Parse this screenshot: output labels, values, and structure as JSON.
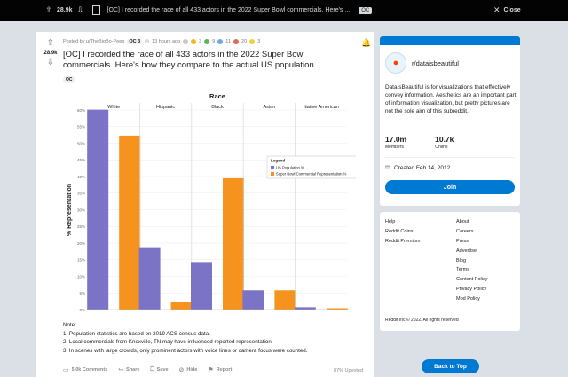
{
  "topbar": {
    "score": "28.9k",
    "title": "[OC] I recorded the race of all 433 actors in the 2022 Super Bowl commercials. Here's ...",
    "tag": "OC",
    "close_label": "Close"
  },
  "post": {
    "score": "28.9k",
    "author": "Posted by u/TheBigBo-Peep",
    "author_tag": "OC 3",
    "time": "13 hours ago",
    "award_counts": [
      "3",
      "9",
      "11",
      "20",
      "3"
    ],
    "title": "[OC] I recorded the race of all 433 actors in the 2022 Super Bowl commercials. Here's how they compare to the actual US population.",
    "flair": "OC",
    "notes_title": "Note:",
    "notes": [
      "1. Population statistics are based on 2019 ACS census data.",
      "2. Local commercials from Knoxville, TN may have influenced reported representation.",
      "3. In scenes with large crowds, only prominent actors with voice lines or camera focus were counted."
    ],
    "actions": {
      "comments": "5.0k Comments",
      "share": "Share",
      "save": "Save",
      "hide": "Hide",
      "report": "Report"
    },
    "upvoted": "87% Upvoted"
  },
  "chart_data": {
    "type": "bar",
    "title": "Race",
    "ylabel": "% Representation",
    "xlabel": "",
    "ylim": [
      0,
      60
    ],
    "yticks": [
      "0%",
      "5%",
      "10%",
      "15%",
      "20%",
      "25%",
      "30%",
      "35%",
      "40%",
      "45%",
      "50%",
      "55%",
      "60%"
    ],
    "categories": [
      "White",
      "Hispanic",
      "Black",
      "Asian",
      "Native American"
    ],
    "series": [
      {
        "name": "US Population %",
        "values": [
          60.1,
          18.5,
          14.3,
          5.8,
          0.7
        ],
        "color": "#7b73c5"
      },
      {
        "name": "Super Bowl Commercial Representation %",
        "values": [
          52.3,
          2.2,
          39.5,
          5.8,
          0.4
        ],
        "color": "#f5931e"
      }
    ],
    "legend": {
      "title": "Legend",
      "placement": "top-right"
    },
    "grid": true
  },
  "sidebar": {
    "name": "r/dataisbeautiful",
    "description": "DataIsBeautiful is for visualizations that effectively convey information. Aesthetics are an important part of information visualization, but pretty pictures are not the sole aim of this subreddit.",
    "members_value": "17.0m",
    "members_label": "Members",
    "online_value": "10.7k",
    "online_label": "Online",
    "created": "Created Feb 14, 2012",
    "join_label": "Join"
  },
  "footer": {
    "left_links": [
      "Help",
      "Reddit Coins",
      "Reddit Premium"
    ],
    "right_links": [
      "About",
      "Careers",
      "Press",
      "Advertise",
      "Blog",
      "Terms",
      "Content Policy",
      "Privacy Policy",
      "Mod Policy"
    ],
    "copyright": "Reddit Inc © 2022. All rights reserved"
  },
  "back_to_top": "Back to Top",
  "colors": {
    "accent": "#0079d3",
    "topbar": "#030303",
    "page": "#dae0e6"
  }
}
